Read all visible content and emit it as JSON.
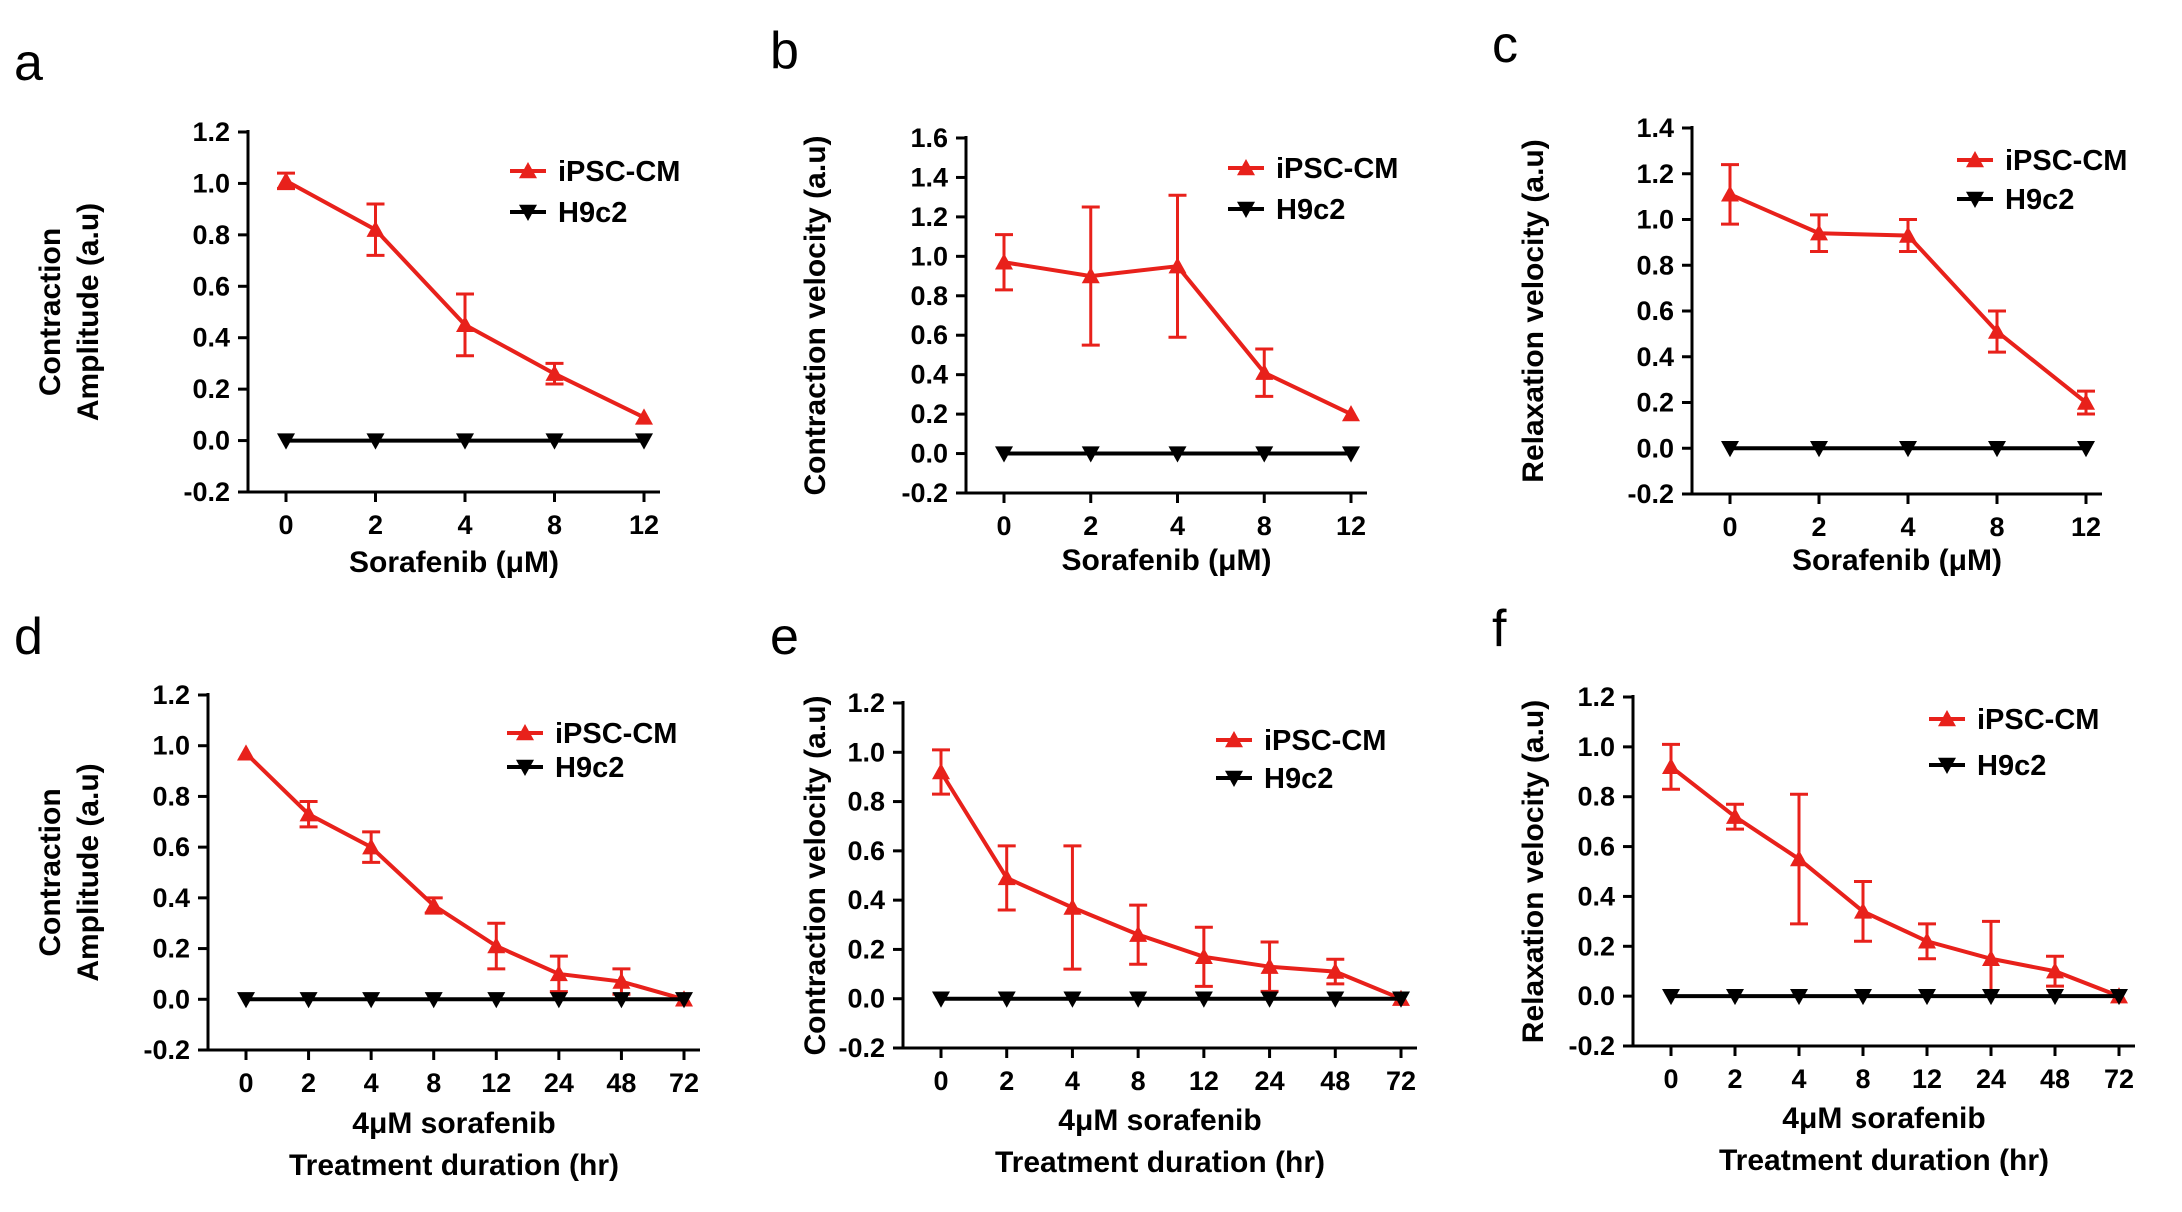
{
  "colors": {
    "ipsc": "#e8211b",
    "h9c2": "#000000",
    "axis": "#000000"
  },
  "chart_data": [
    {
      "panel": "a",
      "type": "line",
      "xlabel": [
        "Sorafenib (μM)"
      ],
      "ylabel": [
        "Contraction",
        "Amplitude (a.u)"
      ],
      "categories": [
        "0",
        "2",
        "4",
        "8",
        "12"
      ],
      "ylim": [
        -0.2,
        1.2
      ],
      "yticks": [
        "-0.2",
        "0.0",
        "0.2",
        "0.4",
        "0.6",
        "0.8",
        "1.0",
        "1.2"
      ],
      "legend": [
        "iPSC-CM",
        "H9c2"
      ],
      "series": [
        {
          "name": "iPSC-CM",
          "values": [
            1.01,
            0.82,
            0.45,
            0.26,
            0.09
          ],
          "errors": [
            0.03,
            0.1,
            0.12,
            0.04,
            0.01
          ]
        },
        {
          "name": "H9c2",
          "values": [
            0,
            0,
            0,
            0,
            0
          ],
          "errors": [
            0,
            0,
            0,
            0,
            0
          ]
        }
      ]
    },
    {
      "panel": "b",
      "type": "line",
      "xlabel": [
        "Sorafenib (μM)"
      ],
      "ylabel": [
        "Contraction velocity (a.u)"
      ],
      "categories": [
        "0",
        "2",
        "4",
        "8",
        "12"
      ],
      "ylim": [
        -0.2,
        1.6
      ],
      "yticks": [
        "-0.2",
        "0.0",
        "0.2",
        "0.4",
        "0.6",
        "0.8",
        "1.0",
        "1.2",
        "1.4",
        "1.6"
      ],
      "legend": [
        "iPSC-CM",
        "H9c2"
      ],
      "series": [
        {
          "name": "iPSC-CM",
          "values": [
            0.97,
            0.9,
            0.95,
            0.41,
            0.2
          ],
          "errors": [
            0.14,
            0.35,
            0.36,
            0.12,
            0.01
          ]
        },
        {
          "name": "H9c2",
          "values": [
            0,
            0,
            0,
            0,
            0
          ],
          "errors": [
            0,
            0,
            0,
            0,
            0
          ]
        }
      ]
    },
    {
      "panel": "c",
      "type": "line",
      "xlabel": [
        "Sorafenib (μM)"
      ],
      "ylabel": [
        "Relaxation velocity (a.u)"
      ],
      "categories": [
        "0",
        "2",
        "4",
        "8",
        "12"
      ],
      "ylim": [
        -0.2,
        1.4
      ],
      "yticks": [
        "-0.2",
        "0.0",
        "0.2",
        "0.4",
        "0.6",
        "0.8",
        "1.0",
        "1.2",
        "1.4"
      ],
      "legend": [
        "iPSC-CM",
        "H9c2"
      ],
      "series": [
        {
          "name": "iPSC-CM",
          "values": [
            1.11,
            0.94,
            0.93,
            0.51,
            0.2
          ],
          "errors": [
            0.13,
            0.08,
            0.07,
            0.09,
            0.05
          ]
        },
        {
          "name": "H9c2",
          "values": [
            0,
            0,
            0,
            0,
            0
          ],
          "errors": [
            0,
            0,
            0,
            0,
            0
          ]
        }
      ]
    },
    {
      "panel": "d",
      "type": "line",
      "xlabel": [
        "4μM sorafenib",
        "Treatment duration (hr)"
      ],
      "ylabel": [
        "Contraction",
        "Amplitude (a.u)"
      ],
      "categories": [
        "0",
        "2",
        "4",
        "8",
        "12",
        "24",
        "48",
        "72"
      ],
      "ylim": [
        -0.2,
        1.2
      ],
      "yticks": [
        "-0.2",
        "0.0",
        "0.2",
        "0.4",
        "0.6",
        "0.8",
        "1.0",
        "1.2"
      ],
      "legend": [
        "iPSC-CM",
        "H9c2"
      ],
      "series": [
        {
          "name": "iPSC-CM",
          "values": [
            0.97,
            0.73,
            0.6,
            0.37,
            0.21,
            0.1,
            0.07,
            0.0
          ],
          "errors": [
            0.01,
            0.05,
            0.06,
            0.03,
            0.09,
            0.07,
            0.05,
            0.01
          ]
        },
        {
          "name": "H9c2",
          "values": [
            0,
            0,
            0,
            0,
            0,
            0,
            0,
            0
          ],
          "errors": [
            0,
            0,
            0,
            0,
            0,
            0,
            0,
            0
          ]
        }
      ]
    },
    {
      "panel": "e",
      "type": "line",
      "xlabel": [
        "4μM sorafenib",
        "Treatment duration (hr)"
      ],
      "ylabel": [
        "Contraction velocity (a.u)"
      ],
      "categories": [
        "0",
        "2",
        "4",
        "8",
        "12",
        "24",
        "48",
        "72"
      ],
      "ylim": [
        -0.2,
        1.2
      ],
      "yticks": [
        "-0.2",
        "0.0",
        "0.2",
        "0.4",
        "0.6",
        "0.8",
        "1.0",
        "1.2"
      ],
      "legend": [
        "iPSC-CM",
        "H9c2"
      ],
      "series": [
        {
          "name": "iPSC-CM",
          "values": [
            0.92,
            0.49,
            0.37,
            0.26,
            0.17,
            0.13,
            0.11,
            0.0
          ],
          "errors": [
            0.09,
            0.13,
            0.25,
            0.12,
            0.12,
            0.1,
            0.05,
            0.01
          ]
        },
        {
          "name": "H9c2",
          "values": [
            0,
            0,
            0,
            0,
            0,
            0,
            0,
            0
          ],
          "errors": [
            0,
            0,
            0,
            0,
            0,
            0,
            0,
            0
          ]
        }
      ]
    },
    {
      "panel": "f",
      "type": "line",
      "xlabel": [
        "4μM sorafenib",
        "Treatment duration (hr)"
      ],
      "ylabel": [
        "Relaxation velocity (a.u)"
      ],
      "categories": [
        "0",
        "2",
        "4",
        "8",
        "12",
        "24",
        "48",
        "72"
      ],
      "ylim": [
        -0.2,
        1.2
      ],
      "yticks": [
        "-0.2",
        "0.0",
        "0.2",
        "0.4",
        "0.6",
        "0.8",
        "1.0",
        "1.2"
      ],
      "legend": [
        "iPSC-CM",
        "H9c2"
      ],
      "series": [
        {
          "name": "iPSC-CM",
          "values": [
            0.92,
            0.72,
            0.55,
            0.34,
            0.22,
            0.15,
            0.1,
            0.0
          ],
          "errors": [
            0.09,
            0.05,
            0.26,
            0.12,
            0.07,
            0.15,
            0.06,
            0.01
          ]
        },
        {
          "name": "H9c2",
          "values": [
            0,
            0,
            0,
            0,
            0,
            0,
            0,
            0
          ],
          "errors": [
            0,
            0,
            0,
            0,
            0,
            0,
            0,
            0
          ]
        }
      ]
    }
  ]
}
